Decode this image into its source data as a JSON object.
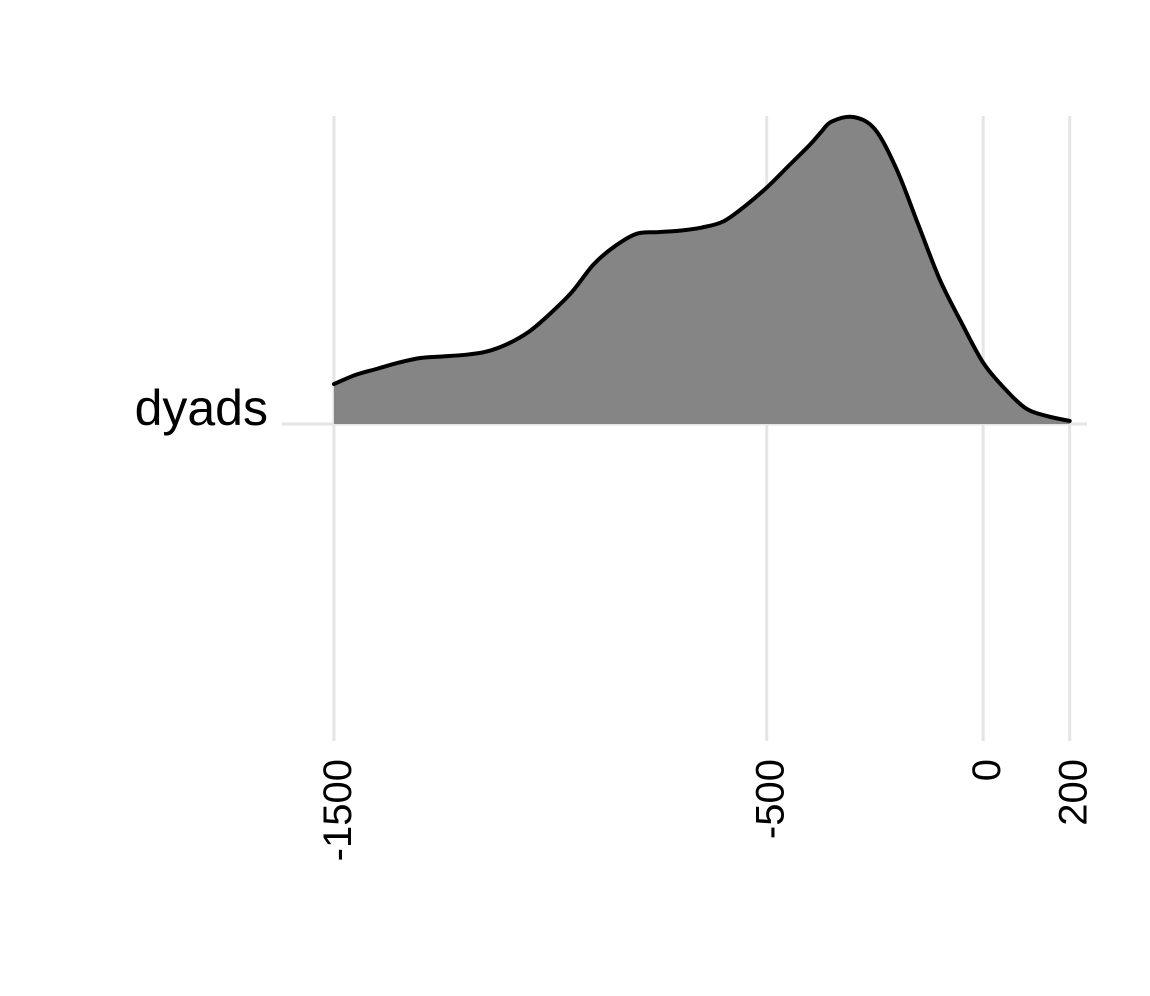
{
  "chart_data": {
    "type": "area",
    "title": "",
    "xlabel": "",
    "ylabel": "",
    "category": "dyads",
    "xlim": [
      -1620,
      240
    ],
    "x_ticks": [
      {
        "value": -1500,
        "label": "-1500"
      },
      {
        "value": -500,
        "label": "-500"
      },
      {
        "value": 0,
        "label": "0"
      },
      {
        "value": 200,
        "label": "200"
      }
    ],
    "grid": true,
    "legend": "none",
    "colors": {
      "fill": "#858585",
      "outline": "#000000",
      "grid": "#e5e5e5",
      "text": "#000000"
    },
    "series": [
      {
        "x": [
          -1500,
          -1450,
          -1400,
          -1350,
          -1300,
          -1250,
          -1200,
          -1150,
          -1100,
          -1050,
          -1000,
          -950,
          -900,
          -850,
          -800,
          -750,
          -700,
          -650,
          -600,
          -550,
          -500,
          -450,
          -400,
          -375,
          -350,
          -300,
          -250,
          -200,
          -150,
          -100,
          -50,
          0,
          50,
          100,
          150,
          200
        ],
        "y": [
          0.13,
          0.16,
          0.18,
          0.2,
          0.215,
          0.22,
          0.225,
          0.235,
          0.26,
          0.3,
          0.36,
          0.43,
          0.52,
          0.58,
          0.62,
          0.625,
          0.63,
          0.64,
          0.66,
          0.71,
          0.77,
          0.84,
          0.91,
          0.95,
          0.985,
          1.0,
          0.96,
          0.83,
          0.65,
          0.47,
          0.33,
          0.2,
          0.115,
          0.05,
          0.025,
          0.01
        ]
      }
    ]
  }
}
